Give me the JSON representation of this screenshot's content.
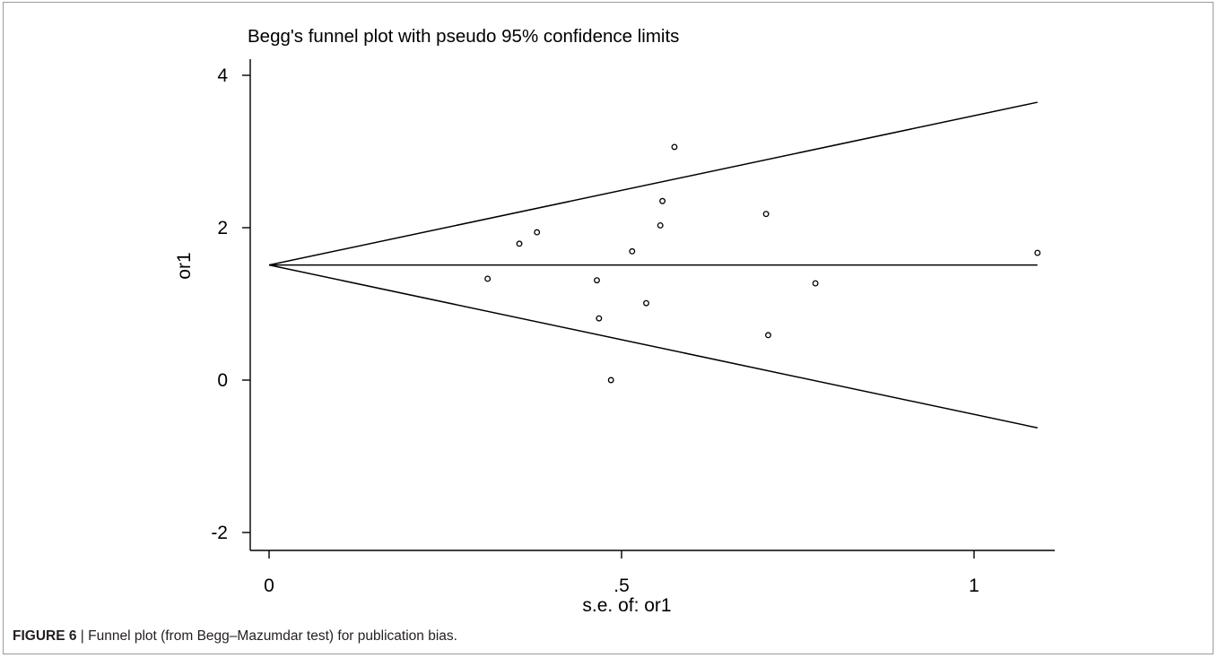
{
  "chart_data": {
    "type": "scatter",
    "title": "Begg's funnel plot with pseudo 95% confidence limits",
    "xlabel": "s.e. of: or1",
    "ylabel": "or1",
    "xlim": [
      0,
      1.12
    ],
    "ylim": [
      -2,
      4
    ],
    "x_ticks": [
      0,
      0.5,
      1
    ],
    "x_tick_labels": [
      "0",
      ".5",
      "1"
    ],
    "y_ticks": [
      -2,
      0,
      2,
      4
    ],
    "y_tick_labels": [
      "-2",
      "0",
      "2",
      "4"
    ],
    "pooled_estimate": 1.51,
    "funnel_se_max": 1.09,
    "grid": false,
    "points": [
      {
        "x": 0.31,
        "y": 1.33
      },
      {
        "x": 0.355,
        "y": 1.79
      },
      {
        "x": 0.38,
        "y": 1.94
      },
      {
        "x": 0.465,
        "y": 1.31
      },
      {
        "x": 0.468,
        "y": 0.81
      },
      {
        "x": 0.485,
        "y": 0.0
      },
      {
        "x": 0.515,
        "y": 1.69
      },
      {
        "x": 0.535,
        "y": 1.01
      },
      {
        "x": 0.555,
        "y": 2.03
      },
      {
        "x": 0.558,
        "y": 2.35
      },
      {
        "x": 0.575,
        "y": 3.06
      },
      {
        "x": 0.705,
        "y": 2.18
      },
      {
        "x": 0.708,
        "y": 0.59
      },
      {
        "x": 0.775,
        "y": 1.27
      },
      {
        "x": 1.09,
        "y": 1.67
      }
    ]
  },
  "caption": {
    "label": "FIGURE 6",
    "separator": " | ",
    "text": "Funnel plot (from Begg–Mazumdar test) for publication bias."
  }
}
